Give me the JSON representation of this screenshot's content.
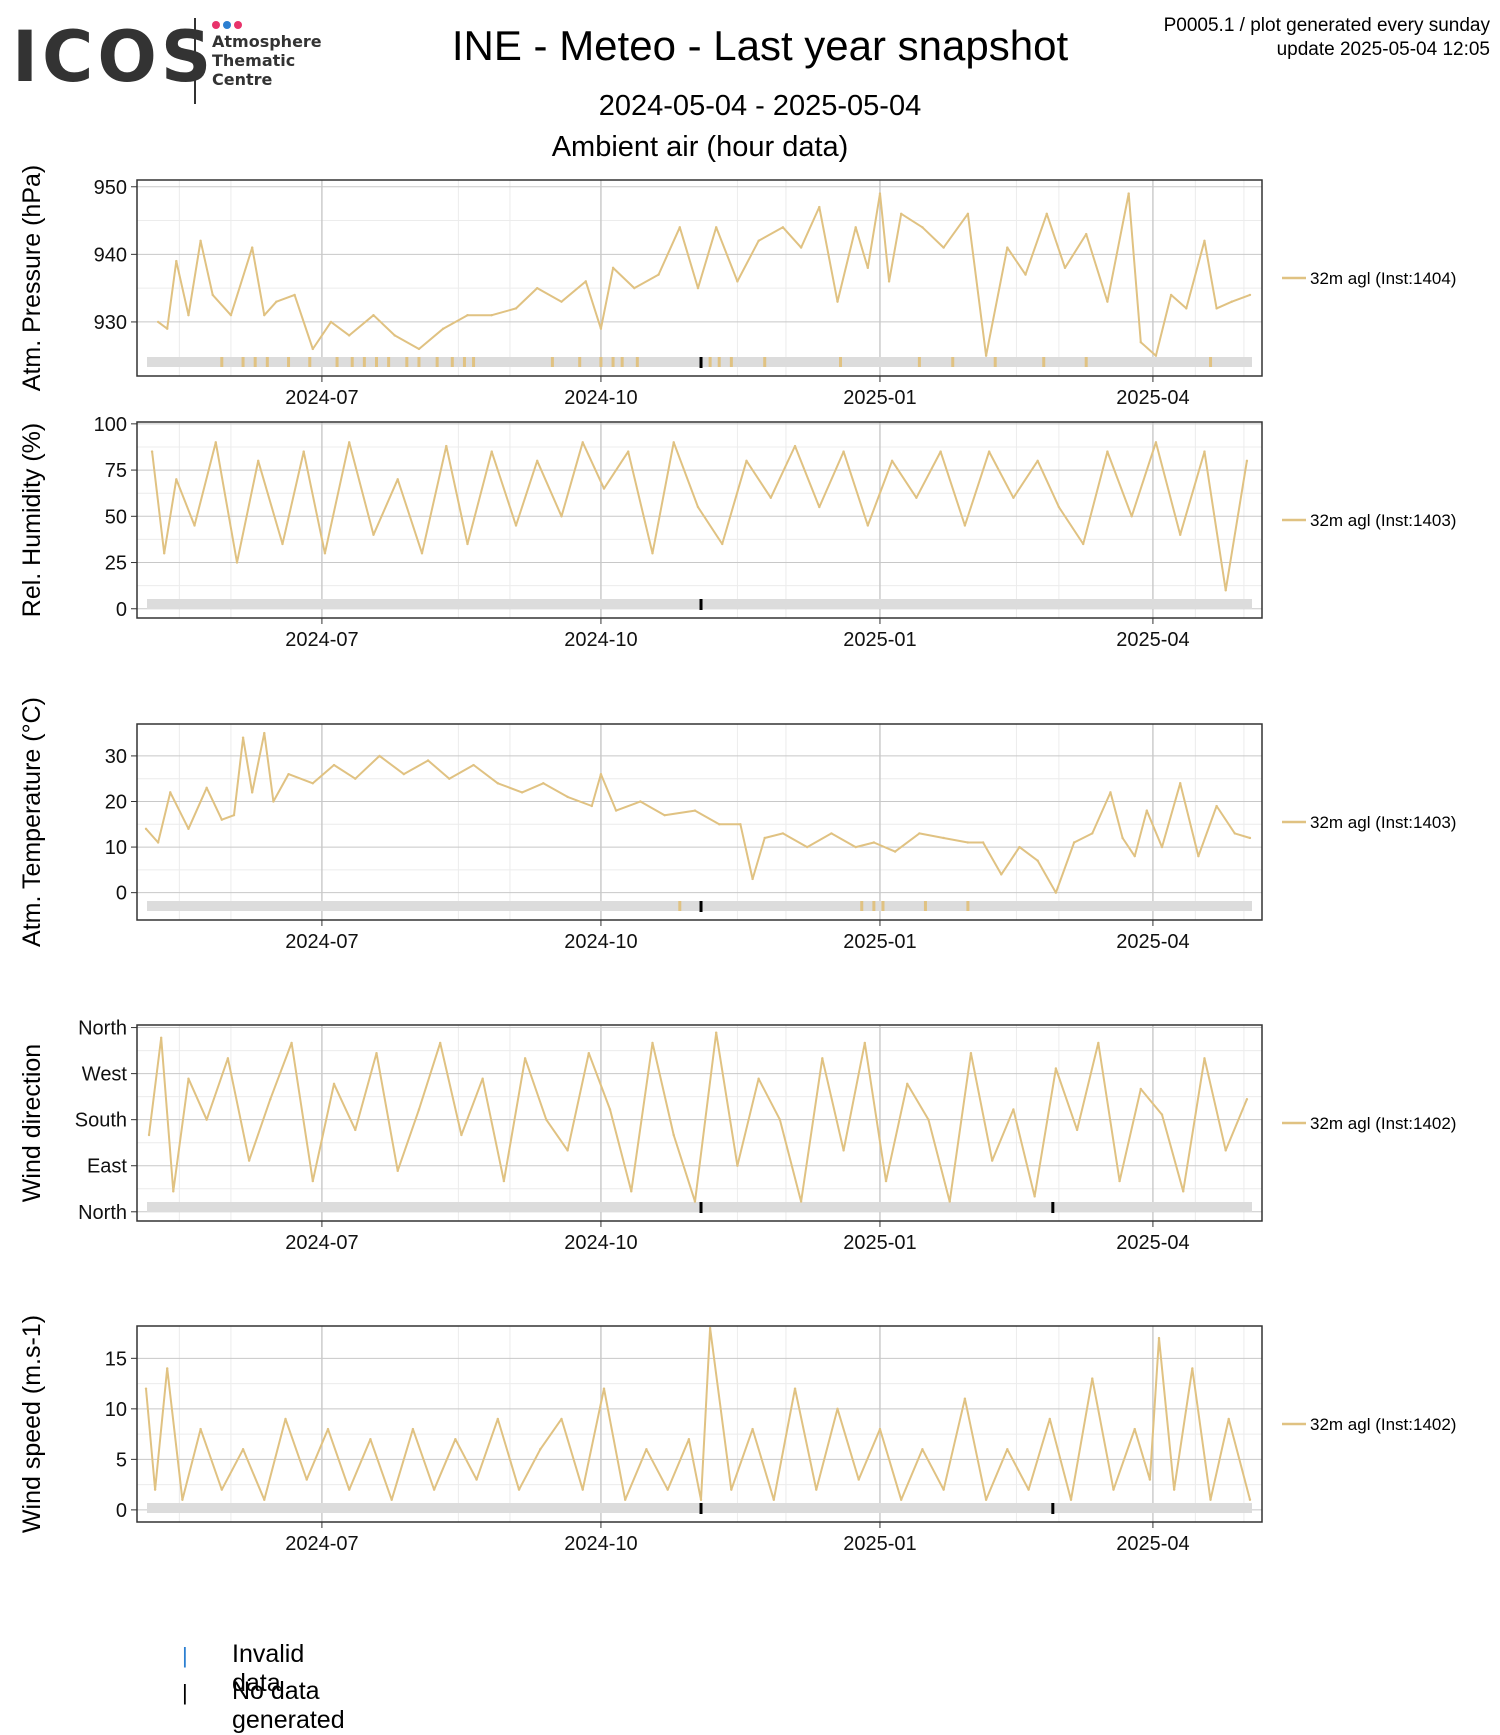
{
  "header": {
    "logo_text": "ICOS",
    "logo_subtitle": "Atmosphere\nThematic\nCentre",
    "logo_dot_colors": [
      "#e8336b",
      "#2c7fd1",
      "#e8336b"
    ],
    "title": "INE - Meteo - Last year snapshot",
    "date_range": "2024-05-04 - 2025-05-04",
    "subtitle": "Ambient air (hour data)",
    "corner_line1": "P0005.1 / plot generated every sunday",
    "corner_line2": "update  2025-05-04 12:05"
  },
  "colors": {
    "series": "#e0c282",
    "invalid": "#2c7fd1",
    "nodata": "#000000",
    "status_bar": "#dcdcdc",
    "grid_major": "#c8c8c8",
    "grid_minor": "#ececec"
  },
  "x_axis": {
    "start": "2024-05-04",
    "end": "2025-05-04",
    "ticks": [
      {
        "date": "2024-07-01",
        "label": "2024-07"
      },
      {
        "date": "2024-10-01",
        "label": "2024-10"
      },
      {
        "date": "2025-01-01",
        "label": "2025-01"
      },
      {
        "date": "2025-04-01",
        "label": "2025-04"
      }
    ]
  },
  "chart_data": [
    {
      "type": "line",
      "ylabel": "Atm. Pressure (hPa)",
      "ylim": [
        922,
        951
      ],
      "yticks": [
        930,
        940,
        950
      ],
      "ytick_labels": [
        "930",
        "940",
        "950"
      ],
      "grid": true,
      "legend": "right",
      "series": [
        {
          "name": "32m agl (Inst:1404)",
          "x": [
            "2024-05-08",
            "2024-05-11",
            "2024-05-14",
            "2024-05-18",
            "2024-05-22",
            "2024-05-26",
            "2024-06-01",
            "2024-06-08",
            "2024-06-12",
            "2024-06-16",
            "2024-06-22",
            "2024-06-28",
            "2024-07-04",
            "2024-07-10",
            "2024-07-18",
            "2024-07-25",
            "2024-08-02",
            "2024-08-10",
            "2024-08-18",
            "2024-08-26",
            "2024-09-03",
            "2024-09-10",
            "2024-09-18",
            "2024-09-26",
            "2024-10-01",
            "2024-10-05",
            "2024-10-12",
            "2024-10-20",
            "2024-10-27",
            "2024-11-02",
            "2024-11-08",
            "2024-11-15",
            "2024-11-22",
            "2024-11-30",
            "2024-12-06",
            "2024-12-12",
            "2024-12-18",
            "2024-12-24",
            "2024-12-28",
            "2025-01-01",
            "2025-01-04",
            "2025-01-08",
            "2025-01-15",
            "2025-01-22",
            "2025-01-30",
            "2025-02-05",
            "2025-02-12",
            "2025-02-18",
            "2025-02-25",
            "2025-03-03",
            "2025-03-10",
            "2025-03-17",
            "2025-03-24",
            "2025-03-28",
            "2025-04-02",
            "2025-04-07",
            "2025-04-12",
            "2025-04-18",
            "2025-04-22",
            "2025-04-27",
            "2025-05-03"
          ],
          "values": [
            930,
            929,
            939,
            931,
            942,
            934,
            931,
            941,
            931,
            933,
            934,
            926,
            930,
            928,
            931,
            928,
            926,
            929,
            931,
            931,
            932,
            935,
            933,
            936,
            929,
            938,
            935,
            937,
            944,
            935,
            944,
            936,
            942,
            944,
            941,
            947,
            933,
            944,
            938,
            949,
            936,
            946,
            944,
            941,
            946,
            925,
            941,
            937,
            946,
            938,
            943,
            933,
            949,
            927,
            925,
            934,
            932,
            942,
            932,
            933,
            934
          ]
        }
      ],
      "status": {
        "invalid_dates": [],
        "nodata_dates": [
          "2024-11-03"
        ],
        "flag_dates": [
          "2024-05-29",
          "2024-06-05",
          "2024-06-09",
          "2024-06-13",
          "2024-06-20",
          "2024-06-27",
          "2024-07-06",
          "2024-07-11",
          "2024-07-15",
          "2024-07-19",
          "2024-07-23",
          "2024-07-29",
          "2024-08-02",
          "2024-08-08",
          "2024-08-13",
          "2024-08-17",
          "2024-08-20",
          "2024-09-15",
          "2024-09-24",
          "2024-10-01",
          "2024-10-05",
          "2024-10-08",
          "2024-10-13",
          "2024-11-06",
          "2024-11-09",
          "2024-11-13",
          "2024-11-24",
          "2024-12-19",
          "2025-01-14",
          "2025-01-25",
          "2025-02-08",
          "2025-02-24",
          "2025-03-10",
          "2025-04-20"
        ]
      }
    },
    {
      "type": "line",
      "ylabel": "Rel. Humidity (%)",
      "ylim": [
        -5,
        101
      ],
      "yticks": [
        0,
        25,
        50,
        75,
        100
      ],
      "ytick_labels": [
        "0",
        "25",
        "50",
        "75",
        "100"
      ],
      "grid": true,
      "legend": "right",
      "series": [
        {
          "name": "32m agl (Inst:1403)",
          "x": [
            "2024-05-06",
            "2024-05-10",
            "2024-05-14",
            "2024-05-20",
            "2024-05-27",
            "2024-06-03",
            "2024-06-10",
            "2024-06-18",
            "2024-06-25",
            "2024-07-02",
            "2024-07-10",
            "2024-07-18",
            "2024-07-26",
            "2024-08-03",
            "2024-08-11",
            "2024-08-18",
            "2024-08-26",
            "2024-09-03",
            "2024-09-10",
            "2024-09-18",
            "2024-09-25",
            "2024-10-02",
            "2024-10-10",
            "2024-10-18",
            "2024-10-25",
            "2024-11-02",
            "2024-11-10",
            "2024-11-18",
            "2024-11-26",
            "2024-12-04",
            "2024-12-12",
            "2024-12-20",
            "2024-12-28",
            "2025-01-05",
            "2025-01-13",
            "2025-01-21",
            "2025-01-29",
            "2025-02-06",
            "2025-02-14",
            "2025-02-22",
            "2025-03-01",
            "2025-03-09",
            "2025-03-17",
            "2025-03-25",
            "2025-04-02",
            "2025-04-10",
            "2025-04-18",
            "2025-04-25",
            "2025-05-02"
          ],
          "values": [
            85,
            30,
            70,
            45,
            90,
            25,
            80,
            35,
            85,
            30,
            90,
            40,
            70,
            30,
            88,
            35,
            85,
            45,
            80,
            50,
            90,
            65,
            85,
            30,
            90,
            55,
            35,
            80,
            60,
            88,
            55,
            85,
            45,
            80,
            60,
            85,
            45,
            85,
            60,
            80,
            55,
            35,
            85,
            50,
            90,
            40,
            85,
            10,
            80
          ]
        }
      ],
      "status": {
        "invalid_dates": [],
        "nodata_dates": [
          "2024-11-03"
        ],
        "flag_dates": []
      }
    },
    {
      "type": "line",
      "ylabel": "Atm. Temperature (°C)",
      "ylim": [
        -6,
        37
      ],
      "yticks": [
        0,
        10,
        20,
        30
      ],
      "ytick_labels": [
        "0",
        "10",
        "20",
        "30"
      ],
      "grid": true,
      "legend": "right",
      "series": [
        {
          "name": "32m agl (Inst:1403)",
          "x": [
            "2024-05-04",
            "2024-05-08",
            "2024-05-12",
            "2024-05-18",
            "2024-05-24",
            "2024-05-29",
            "2024-06-02",
            "2024-06-05",
            "2024-06-08",
            "2024-06-12",
            "2024-06-15",
            "2024-06-20",
            "2024-06-28",
            "2024-07-05",
            "2024-07-12",
            "2024-07-20",
            "2024-07-28",
            "2024-08-05",
            "2024-08-12",
            "2024-08-20",
            "2024-08-28",
            "2024-09-05",
            "2024-09-12",
            "2024-09-20",
            "2024-09-28",
            "2024-10-01",
            "2024-10-06",
            "2024-10-14",
            "2024-10-22",
            "2024-11-01",
            "2024-11-09",
            "2024-11-16",
            "2024-11-20",
            "2024-11-24",
            "2024-11-30",
            "2024-12-08",
            "2024-12-16",
            "2024-12-24",
            "2024-12-30",
            "2025-01-06",
            "2025-01-14",
            "2025-01-22",
            "2025-01-30",
            "2025-02-04",
            "2025-02-10",
            "2025-02-16",
            "2025-02-22",
            "2025-02-28",
            "2025-03-06",
            "2025-03-12",
            "2025-03-18",
            "2025-03-22",
            "2025-03-26",
            "2025-03-30",
            "2025-04-04",
            "2025-04-10",
            "2025-04-16",
            "2025-04-22",
            "2025-04-28",
            "2025-05-03"
          ],
          "values": [
            14,
            11,
            22,
            14,
            23,
            16,
            17,
            34,
            22,
            35,
            20,
            26,
            24,
            28,
            25,
            30,
            26,
            29,
            25,
            28,
            24,
            22,
            24,
            21,
            19,
            26,
            18,
            20,
            17,
            18,
            15,
            15,
            3,
            12,
            13,
            10,
            13,
            10,
            11,
            9,
            13,
            12,
            11,
            11,
            4,
            10,
            7,
            0,
            11,
            13,
            22,
            12,
            8,
            18,
            10,
            24,
            8,
            19,
            13,
            12
          ]
        }
      ],
      "status": {
        "invalid_dates": [],
        "nodata_dates": [
          "2024-11-03"
        ],
        "flag_dates": [
          "2024-10-27",
          "2024-12-26",
          "2024-12-30",
          "2025-01-02",
          "2025-01-16",
          "2025-01-30"
        ]
      }
    },
    {
      "type": "line",
      "ylabel": "Wind direction",
      "ylim": [
        -18,
        365
      ],
      "yticks": [
        0,
        90,
        180,
        270,
        360
      ],
      "ytick_labels": [
        "North",
        "East",
        "South",
        "West",
        "North"
      ],
      "grid": true,
      "legend": "right",
      "series": [
        {
          "name": "32m agl (Inst:1402)",
          "x": [
            "2024-05-05",
            "2024-05-09",
            "2024-05-13",
            "2024-05-18",
            "2024-05-24",
            "2024-05-31",
            "2024-06-07",
            "2024-06-14",
            "2024-06-21",
            "2024-06-28",
            "2024-07-05",
            "2024-07-12",
            "2024-07-19",
            "2024-07-26",
            "2024-08-02",
            "2024-08-09",
            "2024-08-16",
            "2024-08-23",
            "2024-08-30",
            "2024-09-06",
            "2024-09-13",
            "2024-09-20",
            "2024-09-27",
            "2024-10-04",
            "2024-10-11",
            "2024-10-18",
            "2024-10-25",
            "2024-11-01",
            "2024-11-08",
            "2024-11-15",
            "2024-11-22",
            "2024-11-29",
            "2024-12-06",
            "2024-12-13",
            "2024-12-20",
            "2024-12-27",
            "2025-01-03",
            "2025-01-10",
            "2025-01-17",
            "2025-01-24",
            "2025-01-31",
            "2025-02-07",
            "2025-02-14",
            "2025-02-21",
            "2025-02-28",
            "2025-03-07",
            "2025-03-14",
            "2025-03-21",
            "2025-03-28",
            "2025-04-04",
            "2025-04-11",
            "2025-04-18",
            "2025-04-25",
            "2025-05-02"
          ],
          "values": [
            150,
            340,
            40,
            260,
            180,
            300,
            100,
            220,
            330,
            60,
            250,
            160,
            310,
            80,
            200,
            330,
            150,
            260,
            60,
            300,
            180,
            120,
            310,
            200,
            40,
            330,
            150,
            20,
            350,
            90,
            260,
            180,
            20,
            300,
            120,
            330,
            60,
            250,
            180,
            20,
            310,
            100,
            200,
            30,
            280,
            160,
            330,
            60,
            240,
            190,
            40,
            300,
            120,
            220
          ]
        }
      ],
      "status": {
        "invalid_dates": [],
        "nodata_dates": [
          "2024-11-03",
          "2025-02-27"
        ],
        "flag_dates": []
      }
    },
    {
      "type": "line",
      "ylabel": "Wind speed (m.s-1)",
      "ylim": [
        -1.2,
        18.2
      ],
      "yticks": [
        0,
        5,
        10,
        15
      ],
      "ytick_labels": [
        "0",
        "5",
        "10",
        "15"
      ],
      "grid": true,
      "legend": "right",
      "series": [
        {
          "name": "32m agl (Inst:1402)",
          "x": [
            "2024-05-04",
            "2024-05-07",
            "2024-05-11",
            "2024-05-16",
            "2024-05-22",
            "2024-05-29",
            "2024-06-05",
            "2024-06-12",
            "2024-06-19",
            "2024-06-26",
            "2024-07-03",
            "2024-07-10",
            "2024-07-17",
            "2024-07-24",
            "2024-07-31",
            "2024-08-07",
            "2024-08-14",
            "2024-08-21",
            "2024-08-28",
            "2024-09-04",
            "2024-09-11",
            "2024-09-18",
            "2024-09-25",
            "2024-10-02",
            "2024-10-09",
            "2024-10-16",
            "2024-10-23",
            "2024-10-30",
            "2024-11-03",
            "2024-11-06",
            "2024-11-13",
            "2024-11-20",
            "2024-11-27",
            "2024-12-04",
            "2024-12-11",
            "2024-12-18",
            "2024-12-25",
            "2025-01-01",
            "2025-01-08",
            "2025-01-15",
            "2025-01-22",
            "2025-01-29",
            "2025-02-05",
            "2025-02-12",
            "2025-02-19",
            "2025-02-26",
            "2025-03-05",
            "2025-03-12",
            "2025-03-19",
            "2025-03-26",
            "2025-03-31",
            "2025-04-03",
            "2025-04-08",
            "2025-04-14",
            "2025-04-20",
            "2025-04-26",
            "2025-05-03"
          ],
          "values": [
            12,
            2,
            14,
            1,
            8,
            2,
            6,
            1,
            9,
            3,
            8,
            2,
            7,
            1,
            8,
            2,
            7,
            3,
            9,
            2,
            6,
            9,
            2,
            12,
            1,
            6,
            2,
            7,
            1,
            18,
            2,
            8,
            1,
            12,
            2,
            10,
            3,
            8,
            1,
            6,
            2,
            11,
            1,
            6,
            2,
            9,
            1,
            13,
            2,
            8,
            3,
            17,
            2,
            14,
            1,
            9,
            1
          ]
        }
      ],
      "status": {
        "invalid_dates": [],
        "nodata_dates": [
          "2024-11-03",
          "2025-02-27"
        ],
        "flag_dates": []
      }
    }
  ],
  "bottom_legend": {
    "invalid_label": "Invalid data",
    "nodata_label": "No data generated",
    "mark_glyph": "|"
  }
}
